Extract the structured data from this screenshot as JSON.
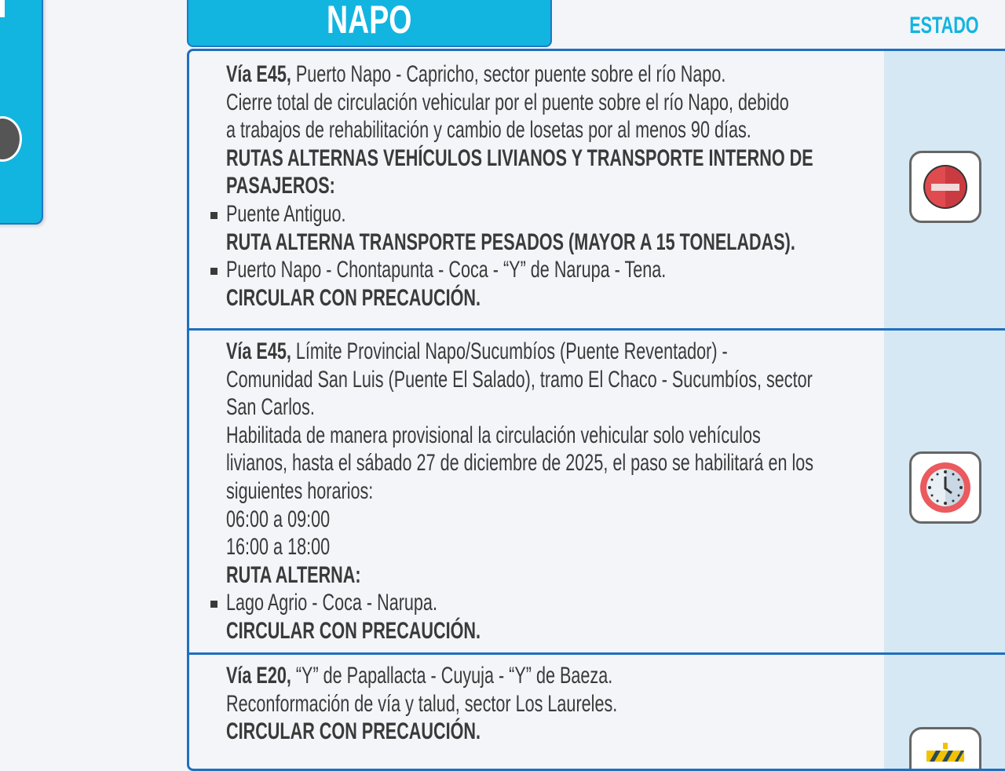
{
  "header": {
    "province": "NAPO",
    "status_heading": "ESTADO"
  },
  "colors": {
    "accent": "#12b5e0",
    "border": "#1f6fc0",
    "status_bg": "#d6e8f3"
  },
  "rows": [
    {
      "status_icon": "no-entry-icon",
      "lines": [
        {
          "bullet": false,
          "b": "Vía E45,",
          "t": " Puerto Napo - Capricho, sector puente sobre el río Napo."
        },
        {
          "bullet": false,
          "b": "",
          "t": "Cierre total de circulación vehicular por el puente sobre el río Napo, debido"
        },
        {
          "bullet": false,
          "b": "",
          "t": "a trabajos de rehabilitación y cambio de losetas por al menos 90 días."
        },
        {
          "bullet": false,
          "b": "RUTAS ALTERNAS VEHÍCULOS LIVIANOS Y TRANSPORTE INTERNO DE",
          "t": ""
        },
        {
          "bullet": false,
          "b": "PASAJEROS:",
          "t": ""
        },
        {
          "bullet": true,
          "b": "",
          "t": "Puente Antiguo."
        },
        {
          "bullet": false,
          "b": "RUTA ALTERNA TRANSPORTE PESADOS (MAYOR A 15 TONELADAS).",
          "t": ""
        },
        {
          "bullet": true,
          "b": "",
          "t": "Puerto Napo - Chontapunta - Coca - “Y” de Narupa - Tena."
        },
        {
          "bullet": false,
          "b": "CIRCULAR CON PRECAUCIÓN.",
          "t": ""
        }
      ]
    },
    {
      "status_icon": "clock-icon",
      "lines": [
        {
          "bullet": false,
          "b": "Vía E45,",
          "t": " Límite Provincial Napo/Sucumbíos (Puente Reventador) -"
        },
        {
          "bullet": false,
          "b": "",
          "t": "Comunidad San Luis (Puente El Salado), tramo El Chaco - Sucumbíos, sector"
        },
        {
          "bullet": false,
          "b": "",
          "t": "San Carlos."
        },
        {
          "bullet": false,
          "b": "",
          "t": "Habilitada de manera provisional la circulación vehicular solo vehículos"
        },
        {
          "bullet": false,
          "b": "",
          "t": "livianos, hasta el sábado 27 de diciembre de 2025, el paso se habilitará en los"
        },
        {
          "bullet": false,
          "b": "",
          "t": "siguientes horarios:"
        },
        {
          "bullet": false,
          "b": "",
          "t": "06:00 a 09:00"
        },
        {
          "bullet": false,
          "b": "",
          "t": "16:00 a 18:00"
        },
        {
          "bullet": false,
          "b": "RUTA ALTERNA:",
          "t": ""
        },
        {
          "bullet": true,
          "b": "",
          "t": "Lago Agrio - Coca - Narupa."
        },
        {
          "bullet": false,
          "b": "CIRCULAR CON PRECAUCIÓN.",
          "t": ""
        }
      ]
    },
    {
      "status_icon": "road-work-barrier-icon",
      "lines": [
        {
          "bullet": false,
          "b": "Vía E20,",
          "t": " “Y” de Papallacta - Cuyuja - “Y” de Baeza."
        },
        {
          "bullet": false,
          "b": "",
          "t": "Reconformación de vía y talud, sector Los Laureles."
        },
        {
          "bullet": false,
          "b": "CIRCULAR CON PRECAUCIÓN.",
          "t": ""
        }
      ]
    }
  ]
}
